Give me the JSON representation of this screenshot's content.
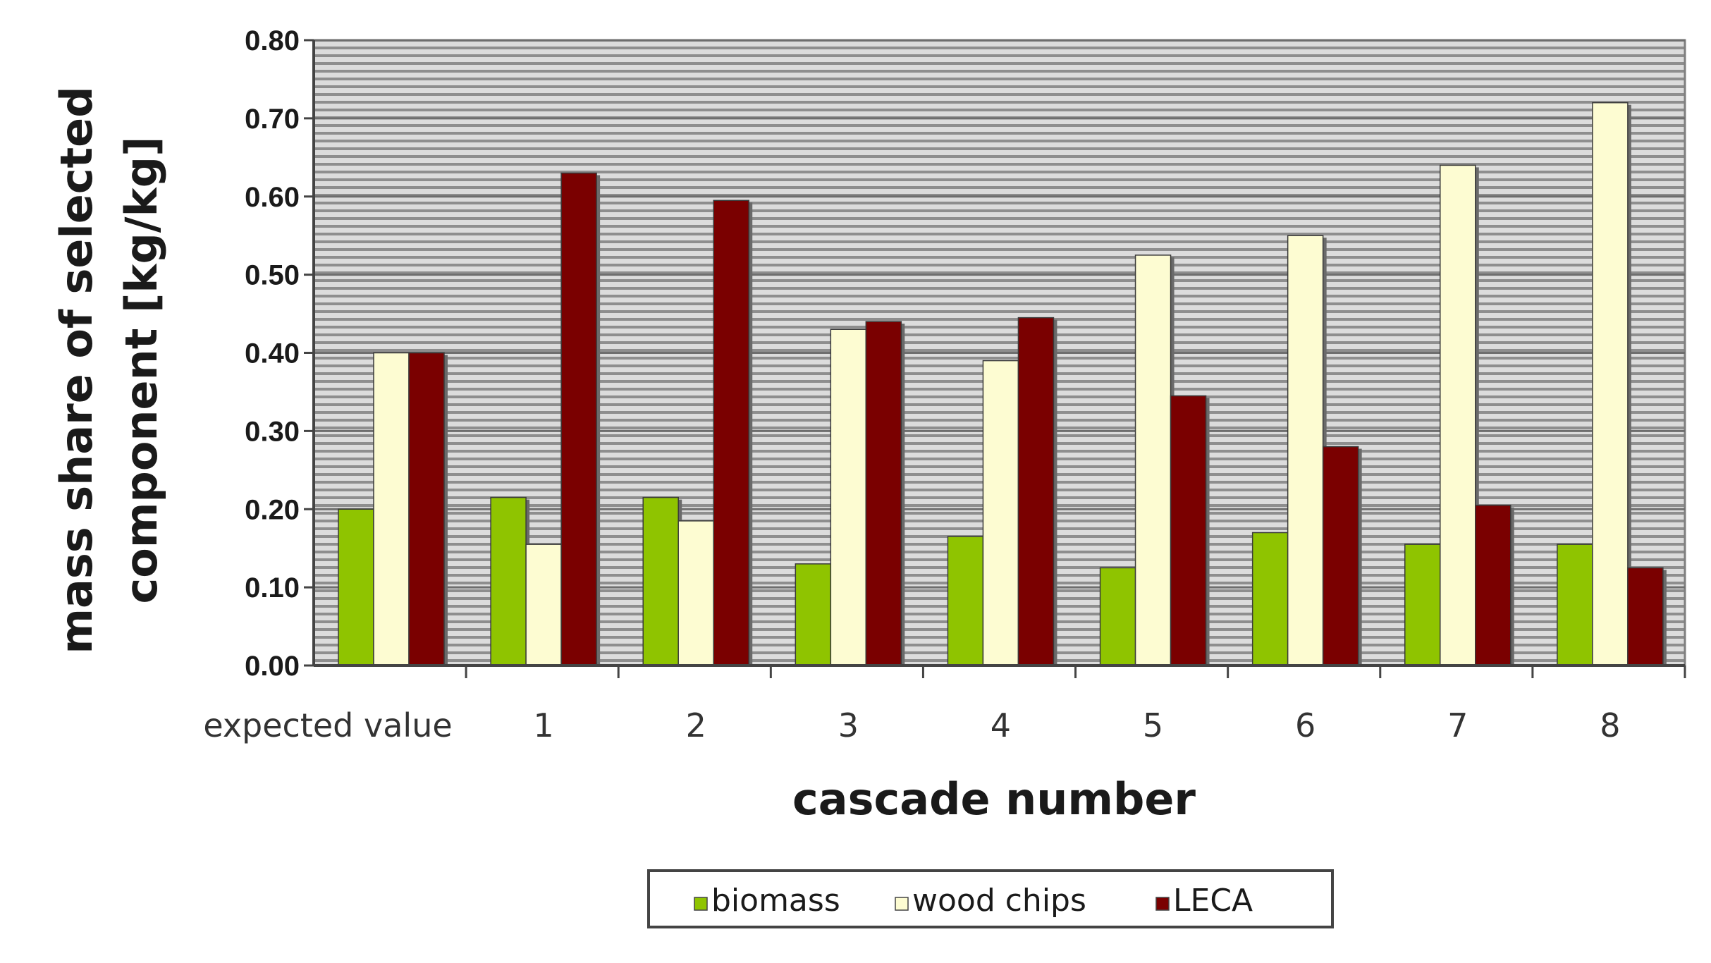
{
  "chart_data": {
    "type": "bar",
    "xlabel": "cascade number",
    "ylabel_lines": [
      "mass share of selected",
      "component [kg/kg]"
    ],
    "ylim": [
      0,
      0.8
    ],
    "yticks": [
      "0.00",
      "0.10",
      "0.20",
      "0.30",
      "0.40",
      "0.50",
      "0.60",
      "0.70",
      "0.80"
    ],
    "categories": [
      "expected value",
      "1",
      "2",
      "3",
      "4",
      "5",
      "6",
      "7",
      "8"
    ],
    "series": [
      {
        "name": "biomass",
        "color": "#8fc400",
        "values": [
          0.2,
          0.215,
          0.215,
          0.13,
          0.165,
          0.125,
          0.17,
          0.155,
          0.155
        ]
      },
      {
        "name": "wood chips",
        "color": "#fdfcd2",
        "values": [
          0.4,
          0.155,
          0.185,
          0.43,
          0.39,
          0.525,
          0.55,
          0.64,
          0.72
        ]
      },
      {
        "name": "LECA",
        "color": "#7a0000",
        "values": [
          0.4,
          0.63,
          0.595,
          0.44,
          0.445,
          0.345,
          0.28,
          0.205,
          0.125
        ]
      }
    ],
    "grid": true,
    "legend_position": "bottom-center"
  }
}
